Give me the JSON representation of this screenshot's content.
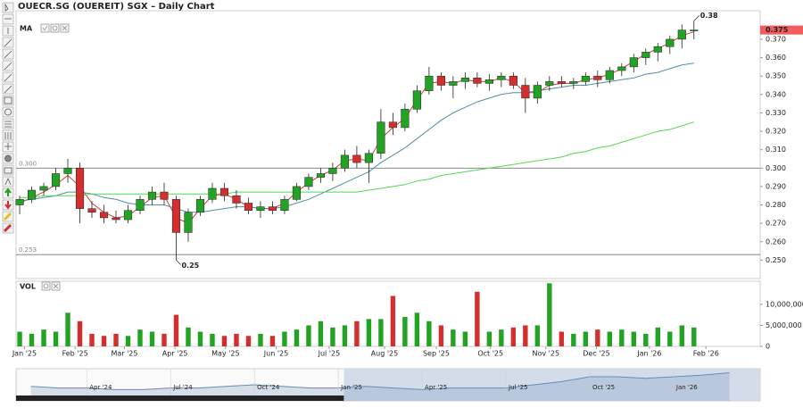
{
  "chart_data": {
    "type": "candlestick",
    "title": "OUECR.SG (OUEREIT) SGX – Daily Chart",
    "up_color": "#23a323",
    "down_color": "#d42f2f",
    "candles": [
      [
        0.28,
        0.285,
        0.275,
        0.283
      ],
      [
        0.283,
        0.29,
        0.281,
        0.288
      ],
      [
        0.288,
        0.292,
        0.285,
        0.29
      ],
      [
        0.29,
        0.3,
        0.288,
        0.297
      ],
      [
        0.297,
        0.305,
        0.292,
        0.3
      ],
      [
        0.3,
        0.303,
        0.27,
        0.278
      ],
      [
        0.278,
        0.282,
        0.273,
        0.276
      ],
      [
        0.276,
        0.28,
        0.27,
        0.273
      ],
      [
        0.273,
        0.277,
        0.27,
        0.272
      ],
      [
        0.272,
        0.28,
        0.27,
        0.277
      ],
      [
        0.277,
        0.285,
        0.275,
        0.283
      ],
      [
        0.283,
        0.29,
        0.28,
        0.287
      ],
      [
        0.287,
        0.292,
        0.28,
        0.283
      ],
      [
        0.283,
        0.285,
        0.25,
        0.265
      ],
      [
        0.265,
        0.278,
        0.26,
        0.276
      ],
      [
        0.276,
        0.285,
        0.274,
        0.283
      ],
      [
        0.283,
        0.292,
        0.281,
        0.289
      ],
      [
        0.289,
        0.292,
        0.282,
        0.285
      ],
      [
        0.285,
        0.288,
        0.278,
        0.281
      ],
      [
        0.281,
        0.284,
        0.275,
        0.277
      ],
      [
        0.277,
        0.282,
        0.273,
        0.279
      ],
      [
        0.279,
        0.282,
        0.275,
        0.277
      ],
      [
        0.277,
        0.285,
        0.275,
        0.283
      ],
      [
        0.283,
        0.292,
        0.282,
        0.29
      ],
      [
        0.29,
        0.297,
        0.288,
        0.295
      ],
      [
        0.295,
        0.3,
        0.292,
        0.297
      ],
      [
        0.297,
        0.303,
        0.293,
        0.3
      ],
      [
        0.3,
        0.31,
        0.298,
        0.307
      ],
      [
        0.307,
        0.312,
        0.3,
        0.303
      ],
      [
        0.303,
        0.31,
        0.292,
        0.308
      ],
      [
        0.308,
        0.332,
        0.305,
        0.325
      ],
      [
        0.325,
        0.33,
        0.318,
        0.322
      ],
      [
        0.322,
        0.335,
        0.32,
        0.332
      ],
      [
        0.332,
        0.345,
        0.33,
        0.342
      ],
      [
        0.342,
        0.355,
        0.34,
        0.35
      ],
      [
        0.35,
        0.352,
        0.342,
        0.345
      ],
      [
        0.345,
        0.35,
        0.338,
        0.347
      ],
      [
        0.347,
        0.352,
        0.343,
        0.349
      ],
      [
        0.349,
        0.352,
        0.344,
        0.346
      ],
      [
        0.346,
        0.351,
        0.342,
        0.348
      ],
      [
        0.348,
        0.352,
        0.344,
        0.35
      ],
      [
        0.35,
        0.352,
        0.343,
        0.345
      ],
      [
        0.345,
        0.349,
        0.33,
        0.338
      ],
      [
        0.338,
        0.347,
        0.335,
        0.345
      ],
      [
        0.345,
        0.35,
        0.342,
        0.347
      ],
      [
        0.347,
        0.35,
        0.344,
        0.346
      ],
      [
        0.346,
        0.349,
        0.343,
        0.347
      ],
      [
        0.347,
        0.352,
        0.345,
        0.35
      ],
      [
        0.35,
        0.353,
        0.344,
        0.348
      ],
      [
        0.348,
        0.355,
        0.346,
        0.353
      ],
      [
        0.353,
        0.357,
        0.35,
        0.355
      ],
      [
        0.355,
        0.362,
        0.352,
        0.36
      ],
      [
        0.36,
        0.365,
        0.356,
        0.363
      ],
      [
        0.363,
        0.368,
        0.358,
        0.366
      ],
      [
        0.366,
        0.372,
        0.362,
        0.37
      ],
      [
        0.37,
        0.378,
        0.365,
        0.375
      ],
      [
        0.375,
        0.38,
        0.37,
        0.375
      ]
    ],
    "xlim": [
      -0.3,
      61.5
    ],
    "xticks": [
      {
        "value": 0.4,
        "label": "Jan '25"
      },
      {
        "value": 4.6,
        "label": "Feb '25"
      },
      {
        "value": 8.7,
        "label": "Mar '25"
      },
      {
        "value": 12.9,
        "label": "Apr '25"
      },
      {
        "value": 17.1,
        "label": "May '25"
      },
      {
        "value": 21.3,
        "label": "Jun '25"
      },
      {
        "value": 25.7,
        "label": "Jul '25"
      },
      {
        "value": 30.3,
        "label": "Aug '25"
      },
      {
        "value": 34.6,
        "label": "Sep '25"
      },
      {
        "value": 39.1,
        "label": "Oct '25"
      },
      {
        "value": 43.7,
        "label": "Nov '25"
      },
      {
        "value": 47.9,
        "label": "Dec '25"
      },
      {
        "value": 52.3,
        "label": "Jan '26"
      },
      {
        "value": 57,
        "label": "Feb '26"
      }
    ],
    "ylim": [
      0.24,
      0.3855
    ],
    "yticks": [
      {
        "value": 0.25,
        "label": "0.250"
      },
      {
        "value": 0.26,
        "label": "0.260"
      },
      {
        "value": 0.27,
        "label": "0.270"
      },
      {
        "value": 0.28,
        "label": "0.280"
      },
      {
        "value": 0.29,
        "label": "0.290"
      },
      {
        "value": 0.3,
        "label": "0.300"
      },
      {
        "value": 0.31,
        "label": "0.310"
      },
      {
        "value": 0.32,
        "label": "0.320"
      },
      {
        "value": 0.33,
        "label": "0.330"
      },
      {
        "value": 0.34,
        "label": "0.340"
      },
      {
        "value": 0.35,
        "label": "0.350"
      },
      {
        "value": 0.36,
        "label": "0.360"
      },
      {
        "value": 0.37,
        "label": "0.370"
      }
    ],
    "last_price": {
      "value": 0.375,
      "label": "0.375"
    },
    "last_price_color": "#f25c5c",
    "high_label": 0.38,
    "low_label": 0.25,
    "reference_lines": [
      {
        "value": 0.3,
        "label": "0.300"
      },
      {
        "value": 0.253,
        "label": "0.253"
      }
    ],
    "ma_label": "MA",
    "moving_averages": [
      {
        "color": "#d33b3b",
        "values": [
          0.281,
          0.284,
          0.287,
          0.291,
          0.296,
          0.29,
          0.281,
          0.276,
          0.273,
          0.274,
          0.279,
          0.284,
          0.285,
          0.273,
          0.27,
          0.278,
          0.285,
          0.286,
          0.283,
          0.279,
          0.278,
          0.278,
          0.281,
          0.287,
          0.292,
          0.296,
          0.299,
          0.304,
          0.305,
          0.304,
          0.316,
          0.322,
          0.327,
          0.337,
          0.346,
          0.347,
          0.346,
          0.348,
          0.347,
          0.347,
          0.349,
          0.347,
          0.341,
          0.341,
          0.345,
          0.346,
          0.346,
          0.348,
          0.349,
          0.351,
          0.354,
          0.358,
          0.362,
          0.365,
          0.368,
          0.372,
          0.374
        ]
      },
      {
        "color": "#4f8fa8",
        "values": [
          0.282,
          0.283,
          0.284,
          0.285,
          0.287,
          0.287,
          0.286,
          0.284,
          0.283,
          0.281,
          0.28,
          0.28,
          0.28,
          0.278,
          0.276,
          0.276,
          0.277,
          0.278,
          0.279,
          0.279,
          0.278,
          0.278,
          0.279,
          0.281,
          0.283,
          0.286,
          0.289,
          0.292,
          0.295,
          0.298,
          0.303,
          0.307,
          0.311,
          0.316,
          0.321,
          0.326,
          0.33,
          0.333,
          0.336,
          0.338,
          0.34,
          0.341,
          0.341,
          0.342,
          0.343,
          0.344,
          0.345,
          0.345,
          0.346,
          0.347,
          0.348,
          0.349,
          0.351,
          0.352,
          0.354,
          0.356,
          0.357
        ]
      },
      {
        "color": "#52d952",
        "values": [
          0.284,
          0.284,
          0.285,
          0.285,
          0.285,
          0.285,
          0.286,
          0.286,
          0.286,
          0.286,
          0.286,
          0.286,
          0.286,
          0.286,
          0.286,
          0.286,
          0.286,
          0.286,
          0.287,
          0.287,
          0.287,
          0.287,
          0.287,
          0.287,
          0.287,
          0.287,
          0.287,
          0.287,
          0.287,
          0.288,
          0.289,
          0.29,
          0.291,
          0.293,
          0.294,
          0.296,
          0.297,
          0.298,
          0.299,
          0.3,
          0.301,
          0.302,
          0.303,
          0.304,
          0.305,
          0.306,
          0.308,
          0.309,
          0.311,
          0.312,
          0.314,
          0.316,
          0.318,
          0.32,
          0.321,
          0.323,
          0.325
        ]
      }
    ],
    "volume": {
      "label": "VOL",
      "ylim": [
        0,
        15500000
      ],
      "yticks": [
        0,
        {
          "value": 5000000,
          "label": "5,000,000"
        },
        {
          "value": 10000000,
          "label": "10,000,000"
        }
      ],
      "values": [
        3500000,
        3000000,
        4000000,
        3500000,
        8000000,
        6000000,
        3000000,
        2500000,
        3000000,
        2500000,
        4000000,
        3500000,
        3000000,
        7500000,
        4500000,
        3500000,
        3000000,
        2500000,
        3000000,
        2500000,
        3000000,
        2500000,
        3500000,
        4000000,
        5000000,
        6000000,
        4500000,
        5000000,
        6000000,
        6500000,
        6500000,
        12000000,
        7000000,
        8000000,
        6000000,
        5000000,
        4000000,
        3500000,
        13000000,
        3500000,
        4000000,
        4500000,
        5000000,
        5000000,
        15000000,
        3500000,
        3000000,
        3500000,
        4000000,
        3500000,
        4000000,
        3500000,
        3000000,
        4500000,
        3500000,
        5000000,
        4500000
      ]
    },
    "navigator": {
      "color": "#6a8bb5",
      "xlim": [
        0.47,
        27.1
      ],
      "ylim": [
        0.2,
        0.4
      ],
      "x": [
        1,
        2,
        3,
        4,
        5,
        6,
        7,
        8,
        9,
        10,
        11,
        12,
        13,
        14,
        15,
        16,
        17,
        18,
        19,
        20,
        21,
        22,
        23,
        24,
        25,
        26
      ],
      "values": [
        0.29,
        0.28,
        0.28,
        0.27,
        0.27,
        0.28,
        0.28,
        0.29,
        0.3,
        0.29,
        0.28,
        0.28,
        0.29,
        0.28,
        0.27,
        0.28,
        0.28,
        0.28,
        0.3,
        0.32,
        0.35,
        0.35,
        0.34,
        0.35,
        0.36,
        0.375
      ],
      "selected_range": [
        12.2,
        27.1
      ],
      "xticks": [
        {
          "value": 3,
          "label": "Apr '24"
        },
        {
          "value": 6,
          "label": "Jul '24"
        },
        {
          "value": 9,
          "label": "Oct '24"
        },
        {
          "value": 12,
          "label": "Jan '25"
        },
        {
          "value": 15,
          "label": "Apr '25"
        },
        {
          "value": 18,
          "label": "Jul '25"
        },
        {
          "value": 21,
          "label": "Oct '25"
        },
        {
          "value": 24,
          "label": "Jan '26"
        }
      ]
    }
  }
}
